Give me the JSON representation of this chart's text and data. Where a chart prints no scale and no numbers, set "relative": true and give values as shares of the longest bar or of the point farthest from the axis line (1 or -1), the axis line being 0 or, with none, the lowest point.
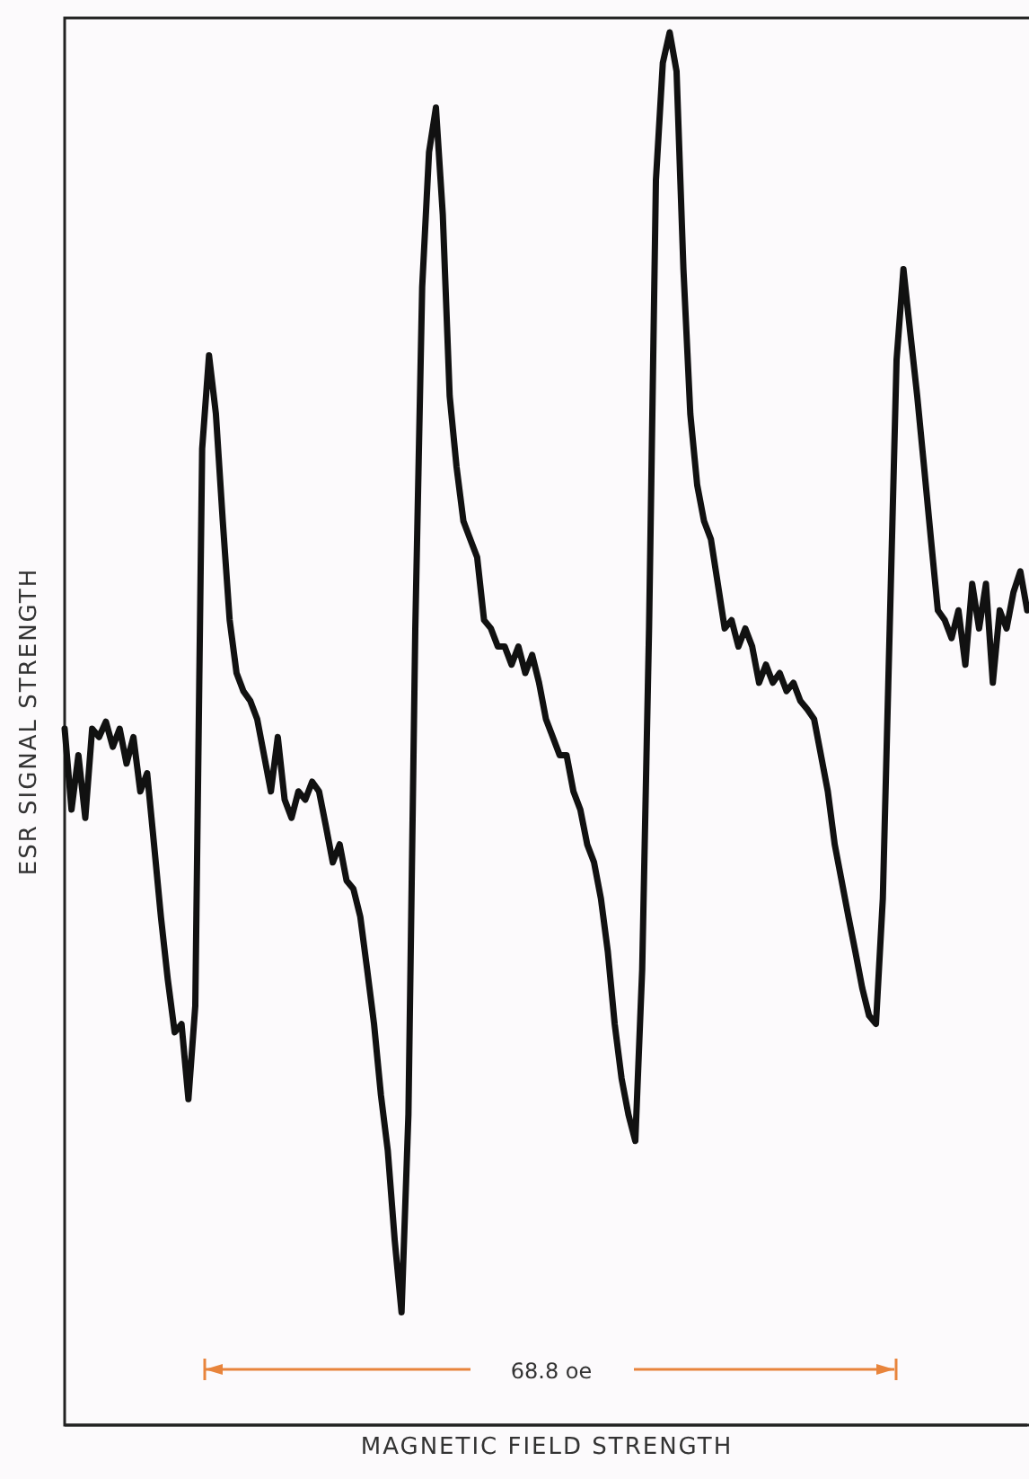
{
  "chart_data": {
    "type": "line",
    "relative": true,
    "xlabel": "MAGNETIC FIELD STRENGTH",
    "ylabel": "ESR SIGNAL STRENGTH",
    "annotations": [
      "68.8 oe"
    ],
    "categories": [
      null,
      null,
      null,
      null,
      null,
      null,
      null,
      null,
      null,
      null,
      null,
      null,
      null,
      null,
      null,
      null,
      null,
      null,
      null,
      null,
      null,
      null,
      null,
      null,
      null,
      null,
      null,
      null,
      null,
      null,
      null,
      null,
      null,
      null,
      null,
      null,
      null,
      null,
      null,
      null,
      null,
      null,
      null,
      null,
      null,
      null,
      null,
      null,
      null,
      null,
      null,
      null,
      null,
      null,
      null,
      null,
      null,
      null,
      null,
      null,
      null,
      null,
      null,
      null,
      null,
      null,
      null,
      null,
      null,
      null,
      null,
      null,
      null,
      null,
      null,
      null,
      null,
      null,
      null,
      null,
      null,
      null,
      null,
      null,
      null,
      null,
      null,
      null,
      null,
      null,
      null,
      null,
      null,
      null,
      null,
      null,
      null,
      null,
      null,
      null,
      null,
      null,
      null,
      null,
      null,
      null,
      null,
      null,
      null,
      null,
      null,
      null,
      null,
      null,
      null,
      null,
      null,
      null,
      null,
      null,
      null,
      null,
      null,
      null,
      null,
      null,
      null,
      null,
      null,
      null,
      null,
      null,
      null,
      null,
      null,
      null,
      null,
      null,
      null,
      null,
      null
    ],
    "series": [
      {
        "color": "#111111",
        "values": [
          0.5,
          0.442,
          0.481,
          0.436,
          0.5,
          0.494,
          0.505,
          0.487,
          0.5,
          0.475,
          0.494,
          0.455,
          0.468,
          0.417,
          0.365,
          0.32,
          0.282,
          0.288,
          0.234,
          0.301,
          0.701,
          0.768,
          0.726,
          0.649,
          0.578,
          0.54,
          0.527,
          0.52,
          0.507,
          0.481,
          0.455,
          0.494,
          0.449,
          0.436,
          0.455,
          0.449,
          0.462,
          0.455,
          0.43,
          0.404,
          0.417,
          0.391,
          0.385,
          0.365,
          0.327,
          0.288,
          0.237,
          0.197,
          0.133,
          0.081,
          0.223,
          0.572,
          0.817,
          0.914,
          0.946,
          0.869,
          0.739,
          0.688,
          0.649,
          0.636,
          0.623,
          0.578,
          0.572,
          0.559,
          0.559,
          0.546,
          0.559,
          0.54,
          0.553,
          0.533,
          0.507,
          0.494,
          0.481,
          0.481,
          0.455,
          0.442,
          0.417,
          0.404,
          0.378,
          0.34,
          0.288,
          0.249,
          0.223,
          0.204,
          0.327,
          0.572,
          0.894,
          0.978,
          1,
          0.972,
          0.83,
          0.726,
          0.675,
          0.649,
          0.636,
          0.604,
          0.572,
          0.578,
          0.559,
          0.572,
          0.559,
          0.533,
          0.546,
          0.533,
          0.54,
          0.527,
          0.533,
          0.52,
          0.514,
          0.507,
          0.481,
          0.455,
          0.417,
          0.391,
          0.365,
          0.34,
          0.314,
          0.294,
          0.288,
          0.378,
          0.572,
          0.765,
          0.83,
          0.784,
          0.739,
          0.688,
          0.636,
          0.585,
          0.578,
          0.565,
          0.585,
          0.546,
          0.604,
          0.572,
          0.604,
          0.533,
          0.585,
          0.572,
          0.598,
          0.613,
          0.585
        ]
      }
    ]
  }
}
